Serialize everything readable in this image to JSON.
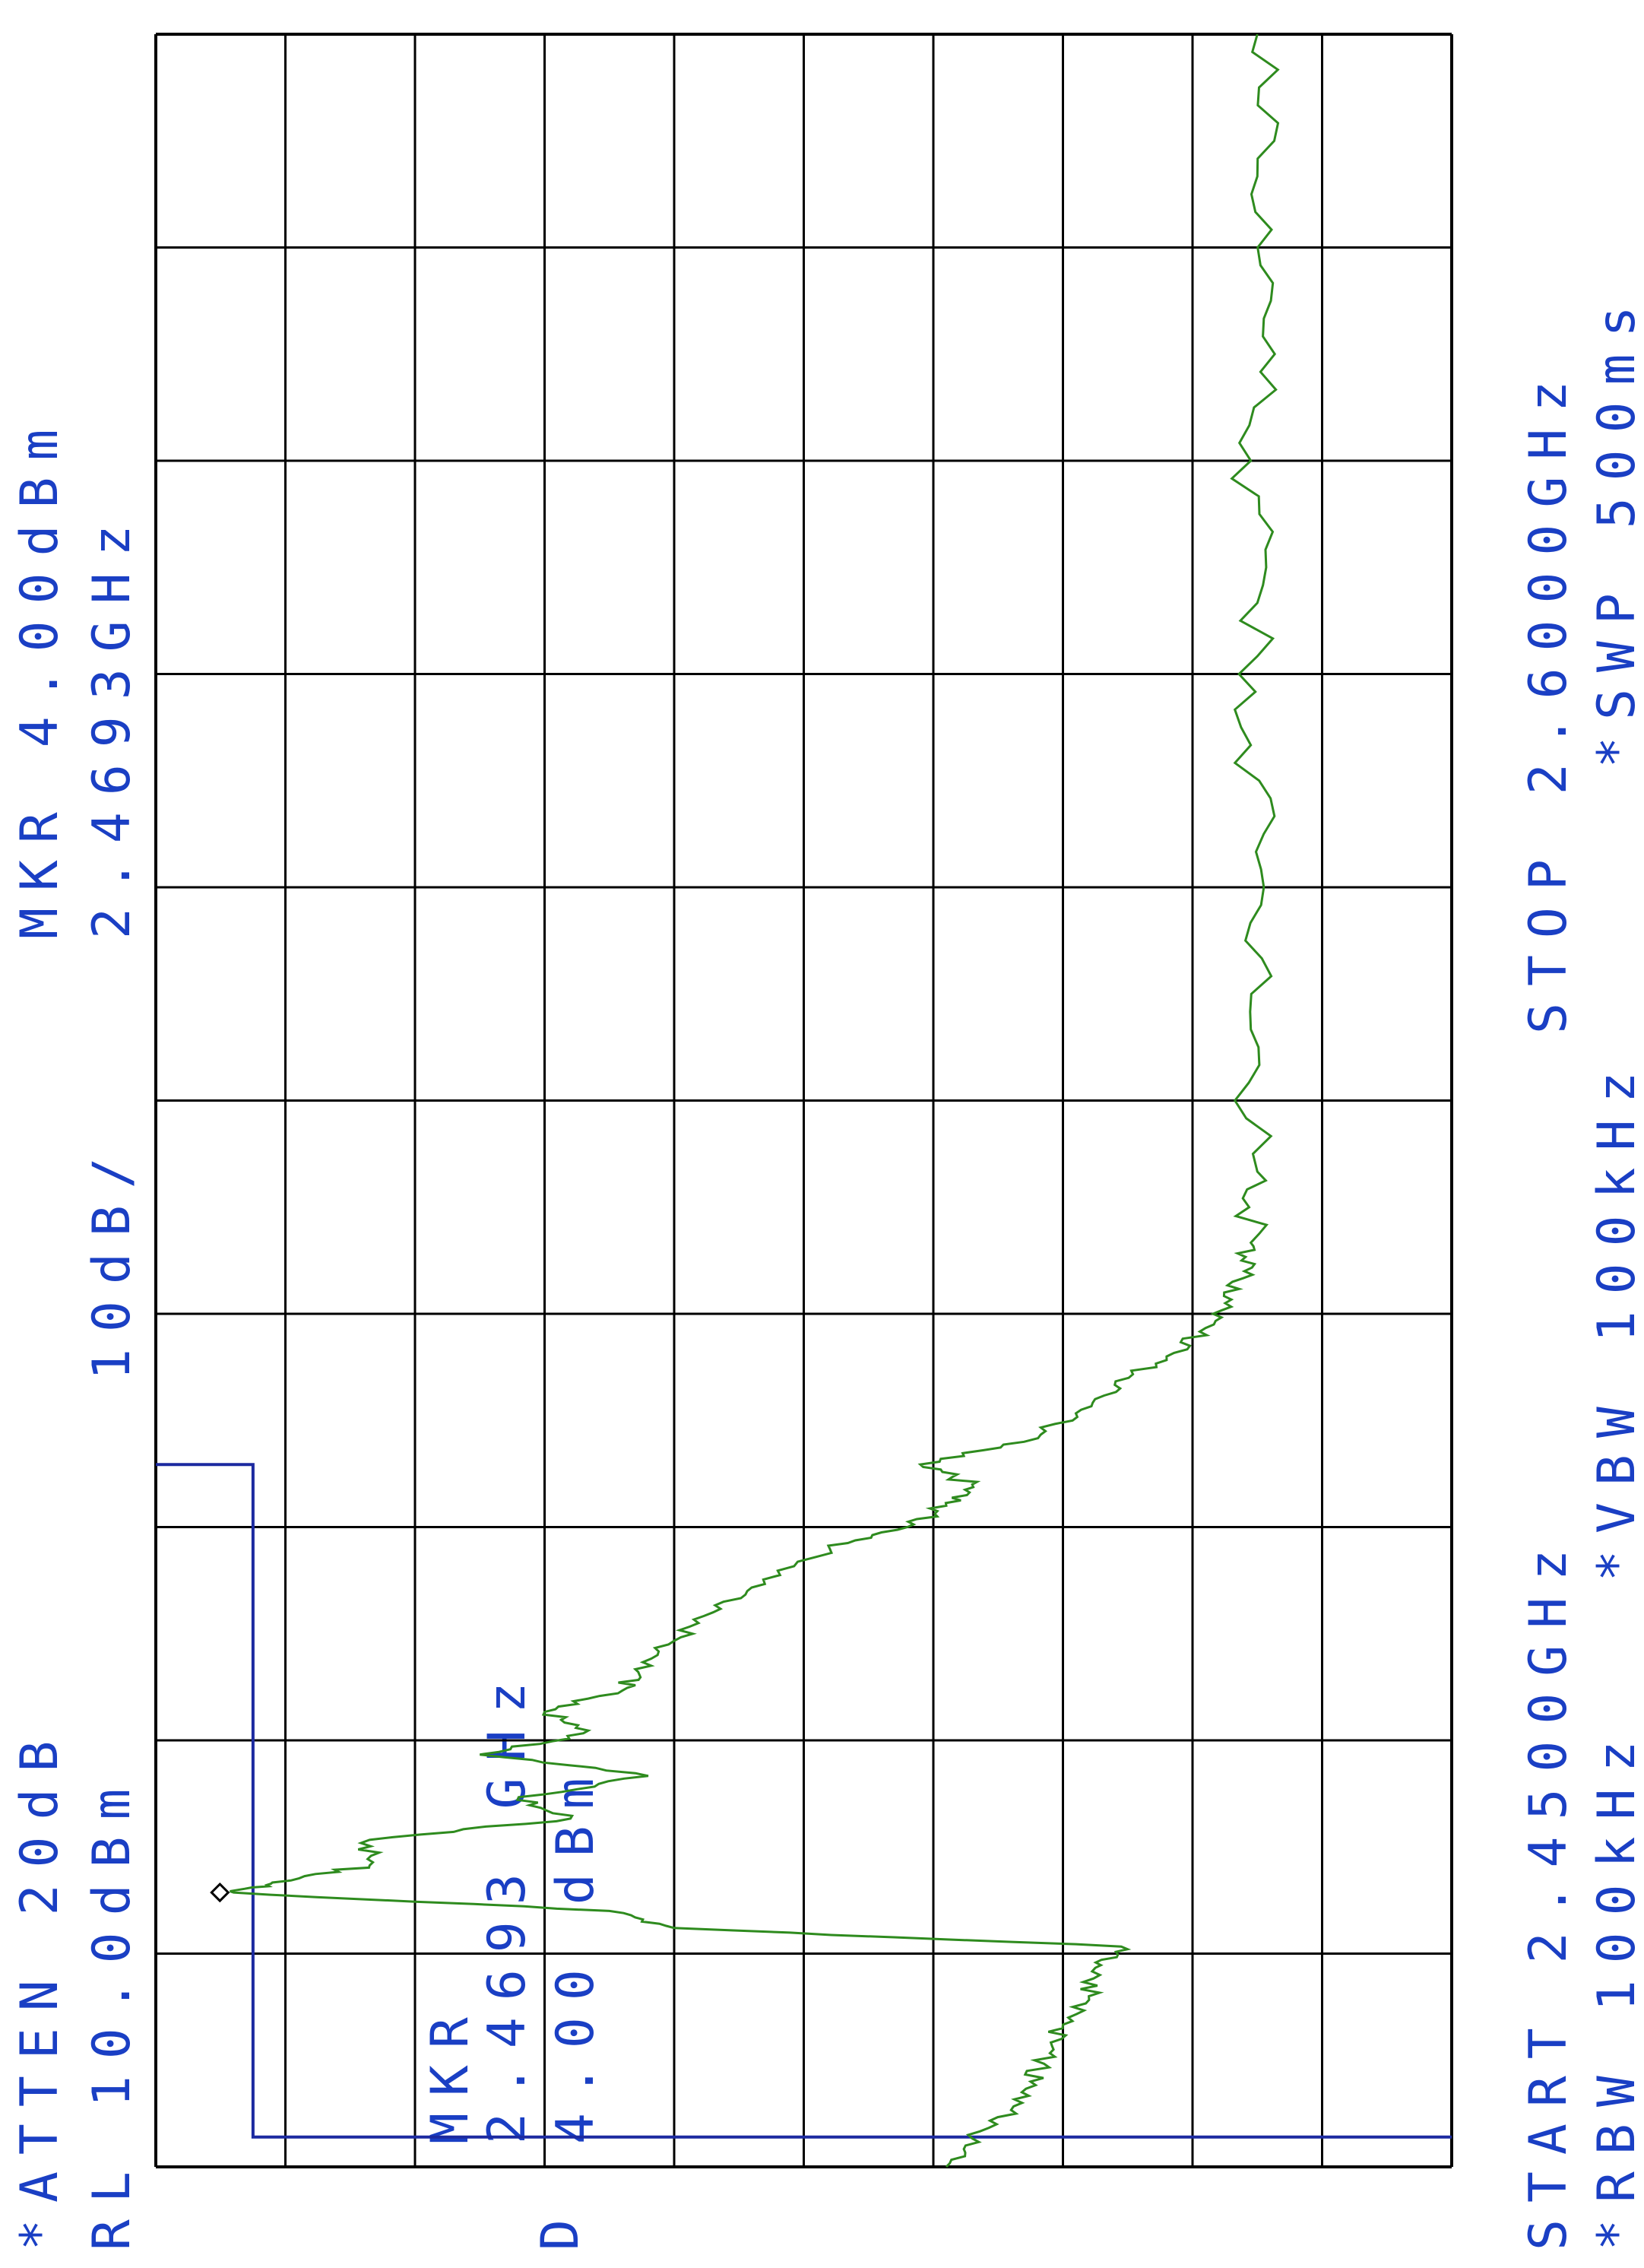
{
  "header": {
    "atten": "*ATTEN 20dB",
    "ref_level": "RL 10.0dBm",
    "scale": "10dB/",
    "marker_label": "MKR 4.00dBm",
    "marker_freq": "2.4693GHz"
  },
  "marker_box": {
    "line1": "MKR",
    "line2": "2.4693 GHz",
    "line3": "4.00 dBm"
  },
  "footer": {
    "start": "START 2.4500GHz",
    "stop": "STOP 2.6000GHz",
    "rbw": "*RBW 100kHz",
    "vbw": "*VBW 100kHz",
    "swp": "*SWP 500ms"
  },
  "detector": "D",
  "colors": {
    "trace": "#2e8b1e",
    "limit": "#1c2aa0",
    "text": "#1a3fc4",
    "grid": "#000000"
  },
  "chart_data": {
    "type": "line",
    "title": "",
    "x_unit": "GHz",
    "y_unit": "dBm",
    "xlim": [
      2.45,
      2.6
    ],
    "ylim": [
      -90,
      10
    ],
    "grid": true,
    "grid_divisions": {
      "x": 10,
      "y": 10
    },
    "marker": {
      "x": 2.4693,
      "y": 4.0
    },
    "limit_line": [
      {
        "x": 2.4521,
        "y": -90
      },
      {
        "x": 2.4521,
        "y": 2.5
      },
      {
        "x": 2.4994,
        "y": 2.5
      },
      {
        "x": 2.4994,
        "y": 10
      }
    ],
    "series": [
      {
        "values": [
          {
            "x": 2.45,
            "y": -51.0
          },
          {
            "x": 2.452,
            "y": -53.0
          },
          {
            "x": 2.454,
            "y": -56.0
          },
          {
            "x": 2.456,
            "y": -57.5
          },
          {
            "x": 2.458,
            "y": -59.0
          },
          {
            "x": 2.46,
            "y": -60.0
          },
          {
            "x": 2.462,
            "y": -62.0
          },
          {
            "x": 2.464,
            "y": -62.5
          },
          {
            "x": 2.4655,
            "y": -64.5
          },
          {
            "x": 2.4668,
            "y": -30.0
          },
          {
            "x": 2.468,
            "y": -25.0
          },
          {
            "x": 2.4693,
            "y": 4.0
          },
          {
            "x": 2.47,
            "y": 1.0
          },
          {
            "x": 2.4712,
            "y": -6.5
          },
          {
            "x": 2.473,
            "y": -6.5
          },
          {
            "x": 2.4745,
            "y": -22.0
          },
          {
            "x": 2.476,
            "y": -18.0
          },
          {
            "x": 2.4775,
            "y": -28.0
          },
          {
            "x": 2.479,
            "y": -15.0
          },
          {
            "x": 2.4805,
            "y": -23.0
          },
          {
            "x": 2.482,
            "y": -20.0
          },
          {
            "x": 2.4835,
            "y": -26.0
          },
          {
            "x": 2.485,
            "y": -27.0
          },
          {
            "x": 2.487,
            "y": -30.0
          },
          {
            "x": 2.489,
            "y": -33.0
          },
          {
            "x": 2.491,
            "y": -37.0
          },
          {
            "x": 2.4935,
            "y": -42.0
          },
          {
            "x": 2.495,
            "y": -48.0
          },
          {
            "x": 2.4965,
            "y": -51.0
          },
          {
            "x": 2.498,
            "y": -53.0
          },
          {
            "x": 2.4994,
            "y": -49.0
          },
          {
            "x": 2.501,
            "y": -57.0
          },
          {
            "x": 2.503,
            "y": -61.0
          },
          {
            "x": 2.505,
            "y": -64.0
          },
          {
            "x": 2.507,
            "y": -68.0
          },
          {
            "x": 2.509,
            "y": -71.0
          },
          {
            "x": 2.511,
            "y": -73.0
          },
          {
            "x": 2.513,
            "y": -74.0
          },
          {
            "x": 2.515,
            "y": -74.5
          },
          {
            "x": 2.52,
            "y": -75.0
          },
          {
            "x": 2.53,
            "y": -74.5
          },
          {
            "x": 2.54,
            "y": -75.5
          },
          {
            "x": 2.55,
            "y": -74.5
          },
          {
            "x": 2.56,
            "y": -75.0
          },
          {
            "x": 2.57,
            "y": -74.5
          },
          {
            "x": 2.58,
            "y": -75.5
          },
          {
            "x": 2.59,
            "y": -75.0
          },
          {
            "x": 2.6,
            "y": -75.0
          }
        ]
      }
    ]
  }
}
